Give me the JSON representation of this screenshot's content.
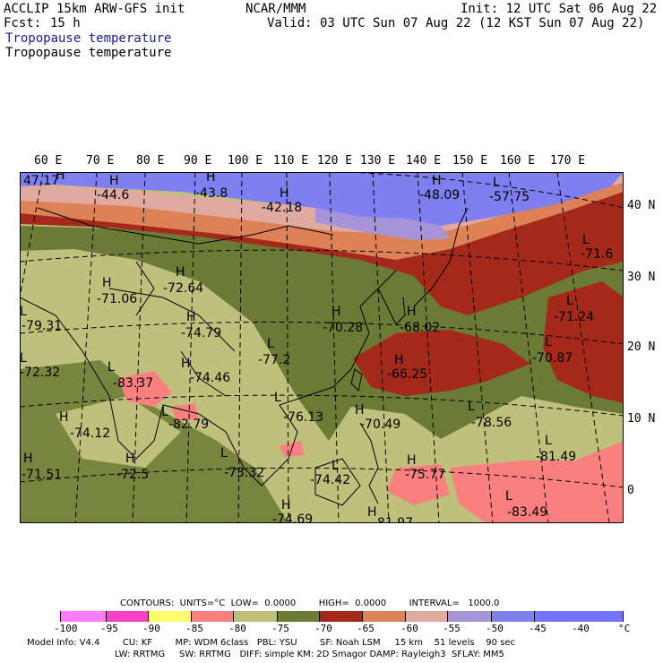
{
  "header": {
    "model": "ACCLIP 15km ARW-GFS init",
    "fcst_label": "Fcst:",
    "fcst_value": "15 h",
    "center": "NCAR/MMM",
    "init": "Init: 12 UTC Sat 06 Aug 22",
    "valid": "Valid: 03 UTC Sun 07 Aug 22 (12 KST Sun 07 Aug 22)",
    "field_title_1": "Tropopause temperature",
    "field_title_2": "Tropopause temperature"
  },
  "map": {
    "lon_labels": [
      "60 E",
      "70 E",
      "80 E",
      "90 E",
      "100 E",
      "110 E",
      "120 E",
      "130 E",
      "140 E",
      "150 E",
      "160 E",
      "170 E"
    ],
    "lat_labels": [
      "40 N",
      "30 N",
      "20 N",
      "10 N",
      "0"
    ],
    "extrema": [
      {
        "type": "H",
        "value": "47.17"
      },
      {
        "type": "H",
        "value": "-44.6"
      },
      {
        "type": "H",
        "value": "-43.8"
      },
      {
        "type": "H",
        "value": "-42.18"
      },
      {
        "type": "H",
        "value": "-48.09"
      },
      {
        "type": "L",
        "value": "-57.75"
      },
      {
        "type": "L",
        "value": "-71.6"
      },
      {
        "type": "H",
        "value": "-71.06"
      },
      {
        "type": "H",
        "value": "-72.64"
      },
      {
        "type": "L",
        "value": "-79.31"
      },
      {
        "type": "H",
        "value": "-74.79"
      },
      {
        "type": "H",
        "value": "-70.28"
      },
      {
        "type": "H",
        "value": "-68.02"
      },
      {
        "type": "L",
        "value": "-71.24"
      },
      {
        "type": "L",
        "value": "-77.2"
      },
      {
        "type": "H",
        "value": "-66.25"
      },
      {
        "type": "L",
        "value": "-70.87"
      },
      {
        "type": "L",
        "value": "-72.32"
      },
      {
        "type": "L",
        "value": "-83.37"
      },
      {
        "type": "H",
        "value": "-74.46"
      },
      {
        "type": "L",
        "value": "-76.13"
      },
      {
        "type": "H",
        "value": "-70.49"
      },
      {
        "type": "L",
        "value": "-78.56"
      },
      {
        "type": "L",
        "value": "-82.79"
      },
      {
        "type": "H",
        "value": "-74.12"
      },
      {
        "type": "L",
        "value": "-81.49"
      },
      {
        "type": "H",
        "value": "-71.51"
      },
      {
        "type": "H",
        "value": "-72.5"
      },
      {
        "type": "L",
        "value": "-73.32"
      },
      {
        "type": "L",
        "value": "-74.42"
      },
      {
        "type": "H",
        "value": "-75.77"
      },
      {
        "type": "L",
        "value": "-83.49"
      },
      {
        "type": "H",
        "value": "-74.69"
      },
      {
        "type": "H",
        "value": "-81.97"
      }
    ]
  },
  "legend": {
    "contours_text": "CONTOURS:  UNITS=°C  LOW=  0.0000        HIGH=  0.0000        INTERVAL=   1000.0",
    "ticks": [
      "-100",
      "-95",
      "-90",
      "-85",
      "-80",
      "-75",
      "-70",
      "-65",
      "-60",
      "-55",
      "-50",
      "-45",
      "-40",
      "°C"
    ],
    "colors": [
      "#ffffff",
      "#ff7df6",
      "#f540c8",
      "#ffff6e",
      "#fa8080",
      "#bfc07c",
      "#6b7a34",
      "#a5291a",
      "#dd8256",
      "#e0aaa0",
      "#a595d8",
      "#7f7ff0",
      "#7474ff"
    ]
  },
  "footer": {
    "line1": "Model Info: V4.4        CU: KF        MP: WDM 6class   PBL: YSU        SF: Noah LSM     15 km    51 levels    90 sec",
    "line2": "LW: RRTMG     SW: RRTMG   DIFF: simple KM: 2D Smagor DAMP: Rayleigh3  SFLAY: MM5"
  }
}
